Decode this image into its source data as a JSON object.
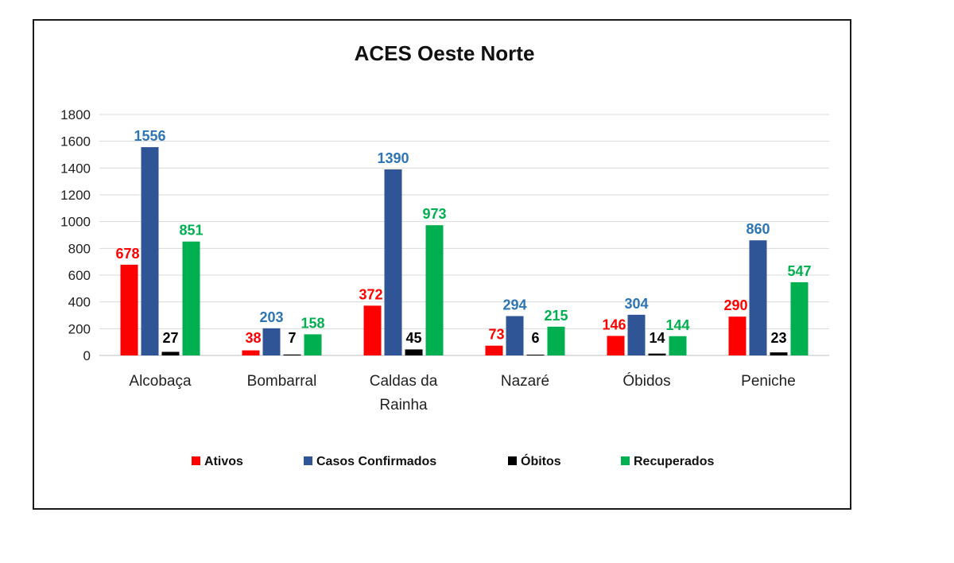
{
  "chart_data": {
    "type": "bar",
    "title": "ACES Oeste Norte",
    "categories": [
      "Alcobaça",
      "Bombarral",
      "Caldas da Rainha",
      "Nazaré",
      "Óbidos",
      "Peniche"
    ],
    "category_lines": [
      [
        "Alcobaça"
      ],
      [
        "Bombarral"
      ],
      [
        "Caldas da",
        "Rainha"
      ],
      [
        "Nazaré"
      ],
      [
        "Óbidos"
      ],
      [
        "Peniche"
      ]
    ],
    "series": [
      {
        "name": "Ativos",
        "color": "#ff0000",
        "label_color": "#ff0000",
        "values": [
          678,
          38,
          372,
          73,
          146,
          290
        ]
      },
      {
        "name": "Casos Confirmados",
        "color": "#2f5597",
        "label_color": "#2e75b6",
        "values": [
          1556,
          203,
          1390,
          294,
          304,
          860
        ]
      },
      {
        "name": "Óbitos",
        "color": "#000000",
        "label_color": "#000000",
        "values": [
          27,
          7,
          45,
          6,
          14,
          23
        ]
      },
      {
        "name": "Recuperados",
        "color": "#00b050",
        "label_color": "#00b050",
        "values": [
          851,
          158,
          973,
          215,
          144,
          547
        ]
      }
    ],
    "ylim": [
      0,
      1800
    ],
    "yticks": [
      0,
      200,
      400,
      600,
      800,
      1000,
      1200,
      1400,
      1600,
      1800
    ],
    "xlabel": "",
    "ylabel": "",
    "grid": true,
    "legend_position": "bottom"
  }
}
